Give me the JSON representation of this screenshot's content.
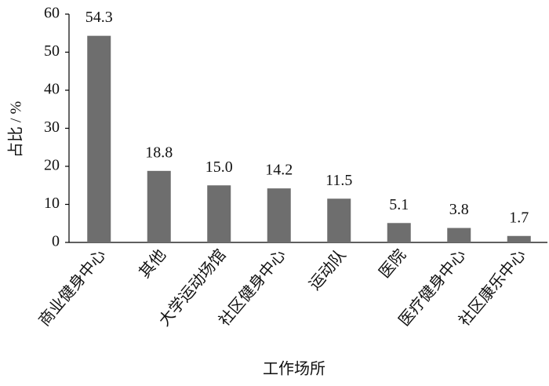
{
  "chart_data": {
    "type": "bar",
    "categories": [
      "商业健身中心",
      "其他",
      "大学运动场馆",
      "社区健身中心",
      "运动队",
      "医院",
      "医疗健身中心",
      "社区康乐中心"
    ],
    "values": [
      54.3,
      18.8,
      15.0,
      14.2,
      11.5,
      5.1,
      3.8,
      1.7
    ],
    "value_labels": [
      "54.3",
      "18.8",
      "15.0",
      "14.2",
      "11.5",
      "5.1",
      "3.8",
      "1.7"
    ],
    "color": "#6e6e6e",
    "x_label": "工作场所",
    "y_label": "占比 / %",
    "ylim": [
      0,
      60
    ],
    "yticks": [
      0,
      10,
      20,
      30,
      40,
      50,
      60
    ],
    "grid": false
  }
}
